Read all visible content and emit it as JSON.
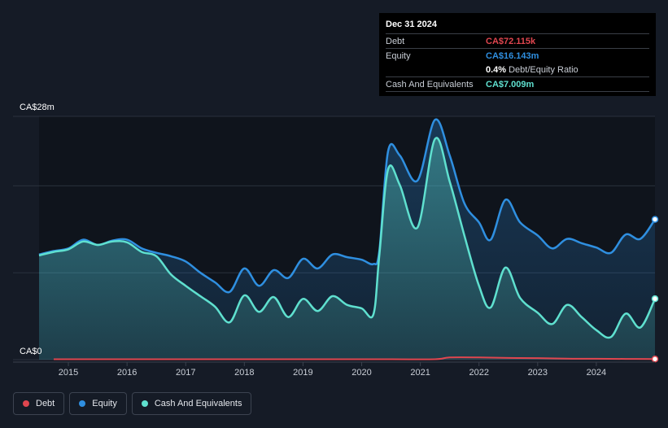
{
  "tooltip": {
    "date": "Dec 31 2024",
    "rows": [
      {
        "label": "Debt",
        "value": "CA$72.115k"
      },
      {
        "label": "Equity",
        "value": "CA$16.143m"
      },
      {
        "label": "",
        "value": "0.4%",
        "suffix": "Debt/Equity Ratio"
      },
      {
        "label": "Cash And Equivalents",
        "value": "CA$7.009m"
      }
    ]
  },
  "legend": {
    "items": [
      {
        "label": "Debt"
      },
      {
        "label": "Equity"
      },
      {
        "label": "Cash And Equivalents"
      }
    ]
  },
  "colors": {
    "debt": "#e0464f",
    "equity": "#2f8fe0",
    "cash": "#5fe0cf",
    "background": "#151b26"
  },
  "chart_data": {
    "type": "area",
    "title": "",
    "xlabel": "",
    "ylabel": "",
    "y_top_label": "CA$28m",
    "y_bottom_label": "CA$0",
    "ylim": [
      0,
      28
    ],
    "xlim": [
      2014.5,
      2025.0
    ],
    "x_ticks": [
      "2015",
      "2016",
      "2017",
      "2018",
      "2019",
      "2020",
      "2021",
      "2022",
      "2023",
      "2024"
    ],
    "series": [
      {
        "name": "Equity",
        "points": [
          [
            2014.5,
            12.1
          ],
          [
            2014.75,
            12.5
          ],
          [
            2015.0,
            12.8
          ],
          [
            2015.25,
            13.8
          ],
          [
            2015.5,
            13.2
          ],
          [
            2015.75,
            13.7
          ],
          [
            2016.0,
            13.8
          ],
          [
            2016.25,
            12.8
          ],
          [
            2016.5,
            12.3
          ],
          [
            2016.75,
            11.9
          ],
          [
            2017.0,
            11.3
          ],
          [
            2017.25,
            10.0
          ],
          [
            2017.5,
            8.9
          ],
          [
            2017.75,
            7.8
          ],
          [
            2018.0,
            10.5
          ],
          [
            2018.25,
            8.5
          ],
          [
            2018.5,
            10.3
          ],
          [
            2018.75,
            9.4
          ],
          [
            2019.0,
            11.6
          ],
          [
            2019.25,
            10.5
          ],
          [
            2019.5,
            12.1
          ],
          [
            2019.75,
            11.8
          ],
          [
            2020.0,
            11.5
          ],
          [
            2020.2,
            11.0
          ],
          [
            2020.3,
            12.5
          ],
          [
            2020.45,
            24.0
          ],
          [
            2020.65,
            23.5
          ],
          [
            2020.95,
            20.6
          ],
          [
            2021.25,
            27.6
          ],
          [
            2021.5,
            23.5
          ],
          [
            2021.75,
            18.0
          ],
          [
            2022.0,
            15.8
          ],
          [
            2022.2,
            13.8
          ],
          [
            2022.45,
            18.4
          ],
          [
            2022.7,
            15.8
          ],
          [
            2023.0,
            14.3
          ],
          [
            2023.25,
            12.8
          ],
          [
            2023.5,
            13.9
          ],
          [
            2023.75,
            13.4
          ],
          [
            2024.0,
            12.9
          ],
          [
            2024.25,
            12.3
          ],
          [
            2024.5,
            14.4
          ],
          [
            2024.75,
            13.9
          ],
          [
            2025.0,
            16.143
          ]
        ]
      },
      {
        "name": "Cash And Equivalents",
        "points": [
          [
            2014.5,
            12.0
          ],
          [
            2014.75,
            12.4
          ],
          [
            2015.0,
            12.7
          ],
          [
            2015.25,
            13.6
          ],
          [
            2015.5,
            13.2
          ],
          [
            2015.75,
            13.6
          ],
          [
            2016.0,
            13.5
          ],
          [
            2016.25,
            12.4
          ],
          [
            2016.5,
            11.9
          ],
          [
            2016.75,
            9.8
          ],
          [
            2017.0,
            8.5
          ],
          [
            2017.25,
            7.3
          ],
          [
            2017.5,
            6.1
          ],
          [
            2017.75,
            4.3
          ],
          [
            2018.0,
            7.4
          ],
          [
            2018.25,
            5.5
          ],
          [
            2018.5,
            7.2
          ],
          [
            2018.75,
            4.9
          ],
          [
            2019.0,
            7.0
          ],
          [
            2019.25,
            5.6
          ],
          [
            2019.5,
            7.3
          ],
          [
            2019.75,
            6.3
          ],
          [
            2020.0,
            5.9
          ],
          [
            2020.2,
            5.2
          ],
          [
            2020.3,
            12.0
          ],
          [
            2020.45,
            21.9
          ],
          [
            2020.65,
            20.1
          ],
          [
            2020.95,
            15.2
          ],
          [
            2021.25,
            25.4
          ],
          [
            2021.5,
            20.5
          ],
          [
            2021.75,
            14.3
          ],
          [
            2022.0,
            8.5
          ],
          [
            2022.2,
            6.0
          ],
          [
            2022.45,
            10.6
          ],
          [
            2022.7,
            7.1
          ],
          [
            2023.0,
            5.4
          ],
          [
            2023.25,
            4.1
          ],
          [
            2023.5,
            6.3
          ],
          [
            2023.75,
            4.9
          ],
          [
            2024.0,
            3.4
          ],
          [
            2024.25,
            2.6
          ],
          [
            2024.5,
            5.3
          ],
          [
            2024.75,
            3.7
          ],
          [
            2025.0,
            7.009
          ]
        ]
      },
      {
        "name": "Debt",
        "points": [
          [
            2014.75,
            0.05
          ],
          [
            2015.5,
            0.05
          ],
          [
            2016.5,
            0.05
          ],
          [
            2017.5,
            0.05
          ],
          [
            2018.5,
            0.05
          ],
          [
            2019.5,
            0.05
          ],
          [
            2020.5,
            0.05
          ],
          [
            2021.25,
            0.05
          ],
          [
            2021.5,
            0.25
          ],
          [
            2022.0,
            0.25
          ],
          [
            2022.5,
            0.2
          ],
          [
            2023.0,
            0.18
          ],
          [
            2023.5,
            0.12
          ],
          [
            2024.0,
            0.1
          ],
          [
            2024.5,
            0.08
          ],
          [
            2025.0,
            0.072115
          ]
        ]
      }
    ]
  }
}
